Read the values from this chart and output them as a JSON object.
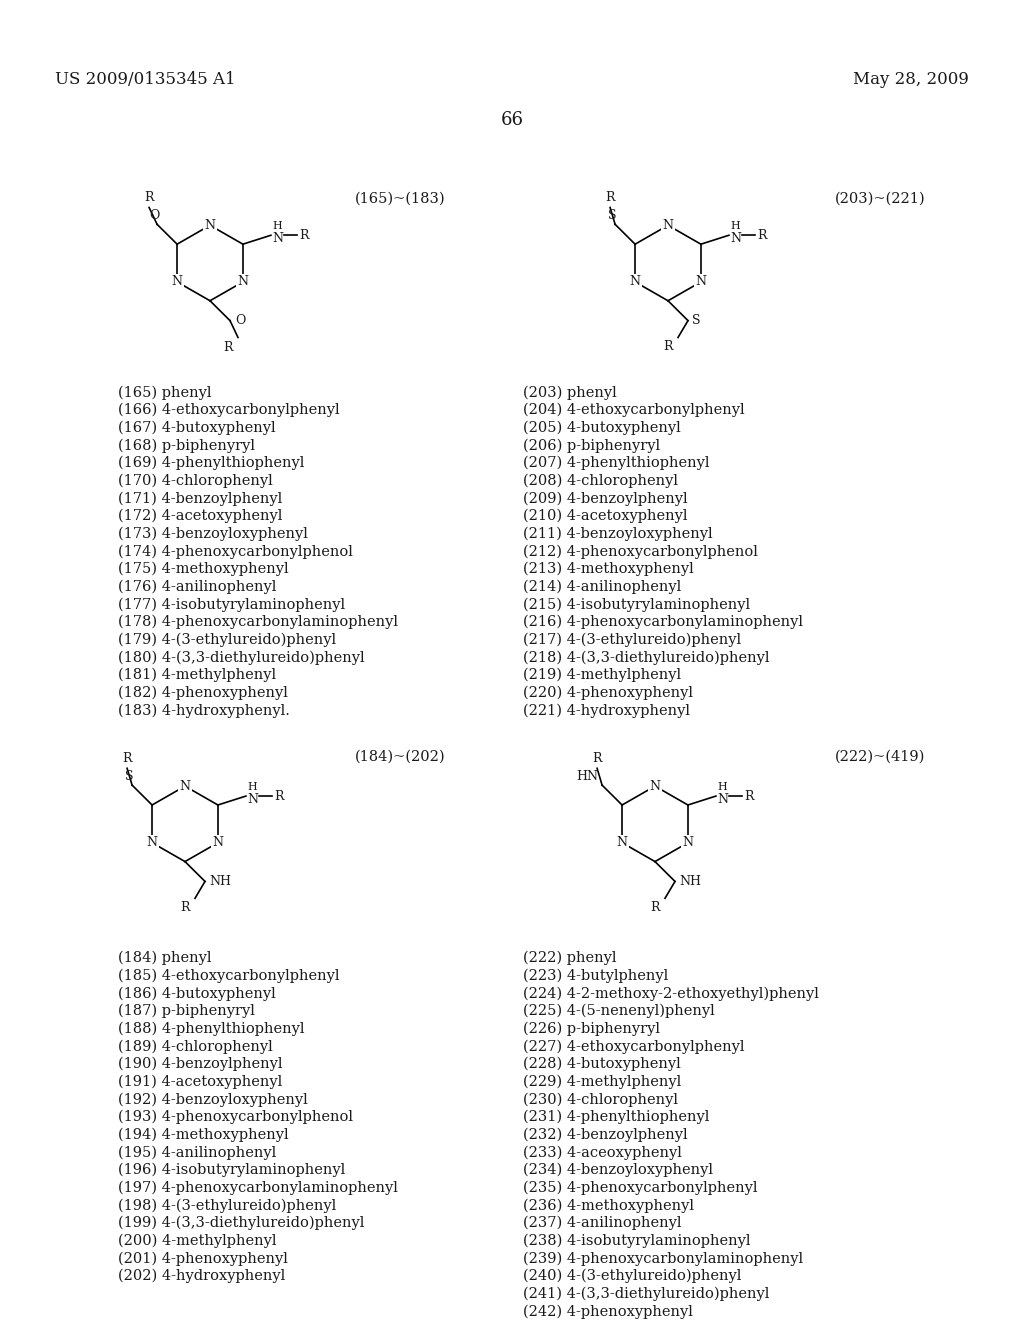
{
  "header_left": "US 2009/0135345 A1",
  "header_right": "May 28, 2009",
  "page_number": "66",
  "bg_color": "#ffffff",
  "text_color": "#1a1a1a",
  "section1_label": "(165)~(183)",
  "section1_list": [
    "(165) phenyl",
    "(166) 4-ethoxycarbonylphenyl",
    "(167) 4-butoxyphenyl",
    "(168) p-biphenyryl",
    "(169) 4-phenylthiophenyl",
    "(170) 4-chlorophenyl",
    "(171) 4-benzoylphenyl",
    "(172) 4-acetoxyphenyl",
    "(173) 4-benzoyloxyphenyl",
    "(174) 4-phenoxycarbonylphenol",
    "(175) 4-methoxyphenyl",
    "(176) 4-anilinophenyl",
    "(177) 4-isobutyrylaminophenyl",
    "(178) 4-phenoxycarbonylaminophenyl",
    "(179) 4-(3-ethylureido)phenyl",
    "(180) 4-(3,3-diethylureido)phenyl",
    "(181) 4-methylphenyl",
    "(182) 4-phenoxyphenyl",
    "(183) 4-hydroxyphenyl."
  ],
  "section2_label": "(184)~(202)",
  "section2_list": [
    "(184) phenyl",
    "(185) 4-ethoxycarbonylphenyl",
    "(186) 4-butoxyphenyl",
    "(187) p-biphenyryl",
    "(188) 4-phenylthiophenyl",
    "(189) 4-chlorophenyl",
    "(190) 4-benzoylphenyl",
    "(191) 4-acetoxyphenyl",
    "(192) 4-benzoyloxyphenyl",
    "(193) 4-phenoxycarbonylphenol",
    "(194) 4-methoxyphenyl",
    "(195) 4-anilinophenyl",
    "(196) 4-isobutyrylaminophenyl",
    "(197) 4-phenoxycarbonylaminophenyl",
    "(198) 4-(3-ethylureido)phenyl",
    "(199) 4-(3,3-diethylureido)phenyl",
    "(200) 4-methylphenyl",
    "(201) 4-phenoxyphenyl",
    "(202) 4-hydroxyphenyl"
  ],
  "section3_label": "(203)~(221)",
  "section3_list": [
    "(203) phenyl",
    "(204) 4-ethoxycarbonylphenyl",
    "(205) 4-butoxyphenyl",
    "(206) p-biphenyryl",
    "(207) 4-phenylthiophenyl",
    "(208) 4-chlorophenyl",
    "(209) 4-benzoylphenyl",
    "(210) 4-acetoxyphenyl",
    "(211) 4-benzoyloxyphenyl",
    "(212) 4-phenoxycarbonylphenol",
    "(213) 4-methoxyphenyl",
    "(214) 4-anilinophenyl",
    "(215) 4-isobutyrylaminophenyl",
    "(216) 4-phenoxycarbonylaminophenyl",
    "(217) 4-(3-ethylureido)phenyl",
    "(218) 4-(3,3-diethylureido)phenyl",
    "(219) 4-methylphenyl",
    "(220) 4-phenoxyphenyl",
    "(221) 4-hydroxyphenyl"
  ],
  "section4_label": "(222)~(419)",
  "section4_list": [
    "(222) phenyl",
    "(223) 4-butylphenyl",
    "(224) 4-2-methoxy-2-ethoxyethyl)phenyl",
    "(225) 4-(5-nenenyl)phenyl",
    "(226) p-biphenyryl",
    "(227) 4-ethoxycarbonylphenyl",
    "(228) 4-butoxyphenyl",
    "(229) 4-methylphenyl",
    "(230) 4-chlorophenyl",
    "(231) 4-phenylthiophenyl",
    "(232) 4-benzoylphenyl",
    "(233) 4-aceoxyphenyl",
    "(234) 4-benzoyloxyphenyl",
    "(235) 4-phenoxycarbonylphenyl",
    "(236) 4-methoxyphenyl",
    "(237) 4-anilinophenyl",
    "(238) 4-isobutyrylaminophenyl",
    "(239) 4-phenoxycarbonylaminophenyl",
    "(240) 4-(3-ethylureido)phenyl",
    "(241) 4-(3,3-diethylureido)phenyl",
    "(242) 4-phenoxyphenyl"
  ]
}
